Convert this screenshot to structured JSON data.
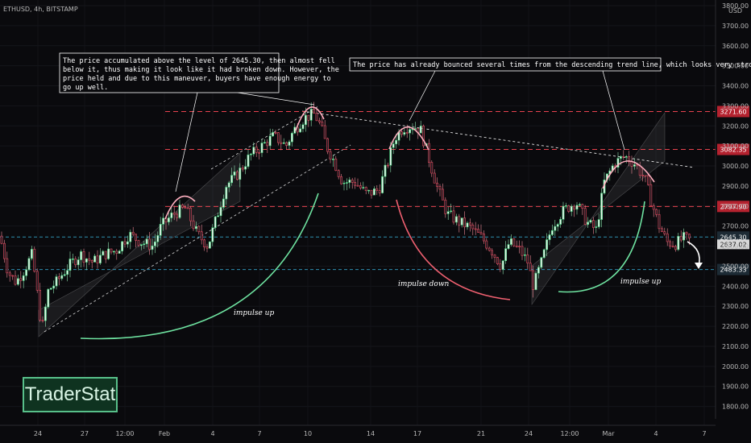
{
  "header": {
    "symbol": "ETHUSD, 4h, BITSTAMP",
    "currency": "USD"
  },
  "brand": {
    "logo_text": "TraderStat"
  },
  "colors": {
    "bull": "#3fd07a",
    "bear": "#e84a5f",
    "level_red": "#e8434f",
    "level_blue": "#2e8fb0",
    "bg": "#0a0a0d"
  },
  "chart_data": {
    "type": "candlestick",
    "y_ticks": [
      3800,
      3700,
      3600,
      3500,
      3400,
      3300,
      3200,
      3100,
      3000,
      2900,
      2800,
      2700,
      2600,
      2500,
      2400,
      2300,
      2200,
      2100,
      2000,
      1900,
      1800
    ],
    "y_tick_labels": [
      "3800.00",
      "3700.00",
      "3600.00",
      "3500.00",
      "3400.00",
      "3300.00",
      "3200.00",
      "3100.00",
      "3000.00",
      "2900.00",
      "2800.00",
      "2700.00",
      "2600.00",
      "2500.00",
      "2400.00",
      "2300.00",
      "2200.00",
      "2100.00",
      "2000.00",
      "1900.00",
      "1800.00"
    ],
    "ylim": [
      1730,
      3810
    ],
    "x_ticks": [
      "24",
      "27",
      "12:00",
      "Feb",
      "4",
      "7",
      "10",
      "14",
      "17",
      "21",
      "24",
      "12:00",
      "Mar",
      "4",
      "7"
    ],
    "levels": [
      {
        "value": 3271.6,
        "label": "3271.60",
        "color": "red"
      },
      {
        "value": 3082.35,
        "label": "3082.35",
        "color": "red"
      },
      {
        "value": 2797.9,
        "label": "2797.90",
        "color": "red"
      },
      {
        "value": 2645.3,
        "label": "2645.30",
        "color": "blue"
      },
      {
        "value": 2483.33,
        "label": "2483.33",
        "color": "blue"
      }
    ],
    "current_price": {
      "value": 2637.02,
      "label": "2637.02"
    },
    "path": [
      [
        0,
        2650
      ],
      [
        10,
        2470
      ],
      [
        20,
        2420
      ],
      [
        30,
        2480
      ],
      [
        40,
        2560
      ],
      [
        52,
        2180
      ],
      [
        60,
        2380
      ],
      [
        70,
        2420
      ],
      [
        85,
        2500
      ],
      [
        100,
        2560
      ],
      [
        115,
        2520
      ],
      [
        130,
        2560
      ],
      [
        145,
        2580
      ],
      [
        160,
        2660
      ],
      [
        175,
        2620
      ],
      [
        190,
        2600
      ],
      [
        200,
        2700
      ],
      [
        215,
        2760
      ],
      [
        230,
        2790
      ],
      [
        245,
        2660
      ],
      [
        258,
        2600
      ],
      [
        270,
        2760
      ],
      [
        280,
        2900
      ],
      [
        295,
        2960
      ],
      [
        310,
        3050
      ],
      [
        325,
        3100
      ],
      [
        340,
        3150
      ],
      [
        355,
        3100
      ],
      [
        365,
        3180
      ],
      [
        378,
        3240
      ],
      [
        390,
        3260
      ],
      [
        398,
        3200
      ],
      [
        405,
        3100
      ],
      [
        415,
        3020
      ],
      [
        425,
        2920
      ],
      [
        440,
        2920
      ],
      [
        455,
        2860
      ],
      [
        470,
        2880
      ],
      [
        480,
        3000
      ],
      [
        490,
        3140
      ],
      [
        500,
        3190
      ],
      [
        512,
        3200
      ],
      [
        522,
        3180
      ],
      [
        532,
        3040
      ],
      [
        542,
        2900
      ],
      [
        555,
        2760
      ],
      [
        570,
        2720
      ],
      [
        585,
        2690
      ],
      [
        598,
        2640
      ],
      [
        610,
        2580
      ],
      [
        622,
        2500
      ],
      [
        632,
        2620
      ],
      [
        645,
        2580
      ],
      [
        655,
        2520
      ],
      [
        662,
        2400
      ],
      [
        672,
        2520
      ],
      [
        685,
        2700
      ],
      [
        700,
        2780
      ],
      [
        715,
        2820
      ],
      [
        728,
        2720
      ],
      [
        740,
        2680
      ],
      [
        750,
        2920
      ],
      [
        762,
        3010
      ],
      [
        775,
        3050
      ],
      [
        788,
        3010
      ],
      [
        800,
        2940
      ],
      [
        810,
        2800
      ],
      [
        818,
        2700
      ],
      [
        828,
        2620
      ],
      [
        838,
        2610
      ],
      [
        848,
        2640
      ],
      [
        856,
        2630
      ]
    ]
  },
  "annotations": {
    "note1": [
      "The price accumulated above the level of 2645.30, then almost fell",
      "below it, thus making it look like it had broken down. However, the",
      "price held and due to this maneuver, buyers have enough energy to",
      "go up well."
    ],
    "note2": "The price has already bounced several times from the descending trend line, which looks very strong.",
    "impulse_up_1": "impulse up",
    "impulse_down": "impulse down",
    "impulse_up_2": "impulse up"
  }
}
